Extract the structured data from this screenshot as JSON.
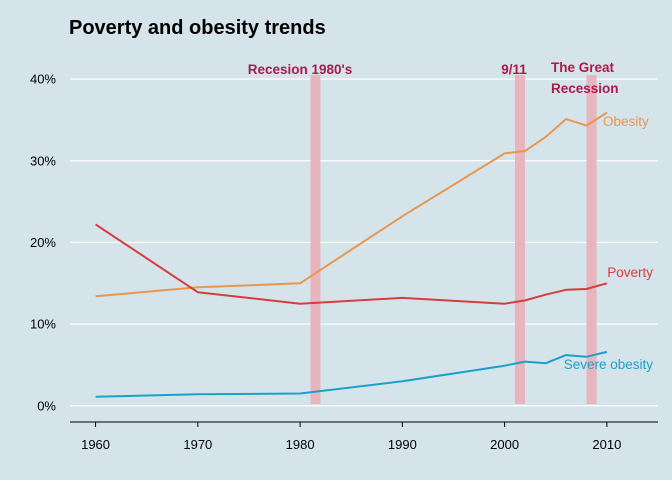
{
  "chart_data": {
    "type": "line",
    "title": "Poverty and obesity trends",
    "xlabel": "",
    "ylabel": "",
    "xlim": [
      1957.5,
      2015
    ],
    "ylim": [
      -1.5,
      40.5
    ],
    "x_ticks": [
      1960,
      1970,
      1980,
      1990,
      2000,
      2010
    ],
    "y_ticks": [
      0,
      10,
      20,
      30,
      40
    ],
    "y_tick_labels": [
      "0%",
      "10%",
      "20%",
      "30%",
      "40%"
    ],
    "grid": "horizontal",
    "background": "#d5e4eb",
    "series": [
      {
        "name": "Obesity",
        "color": "#e8974f",
        "x": [
          1960,
          1970,
          1980,
          1990,
          2000,
          2002,
          2004,
          2006,
          2008,
          2010
        ],
        "y": [
          13.4,
          14.5,
          15.0,
          23.2,
          30.9,
          31.2,
          32.9,
          35.1,
          34.3,
          35.9
        ]
      },
      {
        "name": "Poverty",
        "color": "#d63d3d",
        "x": [
          1960,
          1970,
          1980,
          1990,
          2000,
          2002,
          2004,
          2006,
          2008,
          2010
        ],
        "y": [
          22.2,
          13.9,
          12.5,
          13.2,
          12.5,
          12.9,
          13.6,
          14.2,
          14.3,
          15.0
        ]
      },
      {
        "name": "Severe obesity",
        "color": "#1aa1c9",
        "x": [
          1960,
          1970,
          1980,
          1990,
          2000,
          2002,
          2004,
          2006,
          2008,
          2010
        ],
        "y": [
          1.1,
          1.4,
          1.5,
          3.0,
          4.9,
          5.4,
          5.2,
          6.2,
          6.0,
          6.6
        ]
      }
    ],
    "bands": [
      {
        "label": "Recesion 1980's",
        "x": 1981.5
      },
      {
        "label": "9/11",
        "x": 2001.5
      },
      {
        "label": "The Great Recession",
        "x": 2008.5
      }
    ],
    "band_color": "#e8b4bd",
    "band_label_color": "#b0184a"
  }
}
